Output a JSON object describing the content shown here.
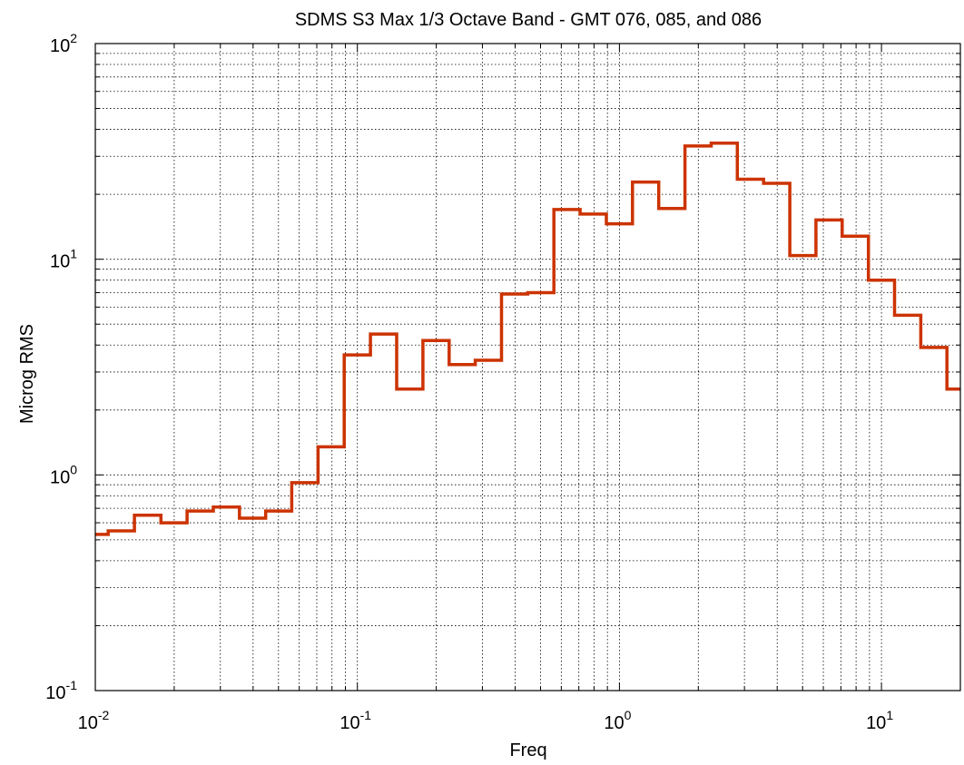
{
  "chart_data": {
    "type": "line",
    "title": "SDMS S3 Max 1/3 Octave Band - GMT 076, 085, and 086",
    "xlabel": "Freq",
    "ylabel": "Microg RMS",
    "xscale": "log",
    "yscale": "log",
    "xlim": [
      0.01,
      20
    ],
    "ylim": [
      0.1,
      100
    ],
    "grid": "major and minor, dotted",
    "x_ticks": [
      {
        "base": "10",
        "exp": "-2",
        "value": 0.01
      },
      {
        "base": "10",
        "exp": "-1",
        "value": 0.1
      },
      {
        "base": "10",
        "exp": "0",
        "value": 1
      },
      {
        "base": "10",
        "exp": "1",
        "value": 10
      }
    ],
    "y_ticks": [
      {
        "base": "10",
        "exp": "-1",
        "value": 0.1
      },
      {
        "base": "10",
        "exp": "0",
        "value": 1
      },
      {
        "base": "10",
        "exp": "1",
        "value": 10
      },
      {
        "base": "10",
        "exp": "2",
        "value": 100
      }
    ],
    "series": [
      {
        "color": "#cc3300",
        "step": "staircase (1/3 octave bands)",
        "band_edges": [
          0.01,
          0.0112,
          0.0141,
          0.0178,
          0.0224,
          0.0282,
          0.0355,
          0.0447,
          0.0562,
          0.0708,
          0.0891,
          0.1122,
          0.1413,
          0.1778,
          0.2239,
          0.2818,
          0.3548,
          0.4467,
          0.5623,
          0.7079,
          0.8913,
          1.122,
          1.413,
          1.778,
          2.239,
          2.818,
          3.548,
          4.467,
          5.623,
          7.079,
          8.913,
          11.22,
          14.13,
          17.78,
          20
        ],
        "values": [
          0.53,
          0.55,
          0.65,
          0.6,
          0.68,
          0.71,
          0.63,
          0.68,
          0.92,
          1.35,
          3.6,
          4.5,
          2.5,
          4.2,
          3.25,
          3.4,
          6.9,
          7.0,
          17.0,
          16.2,
          14.6,
          22.8,
          17.2,
          33.5,
          34.5,
          23.5,
          22.5,
          10.4,
          15.2,
          12.8,
          8.0,
          5.5,
          3.9,
          2.5
        ]
      }
    ]
  }
}
